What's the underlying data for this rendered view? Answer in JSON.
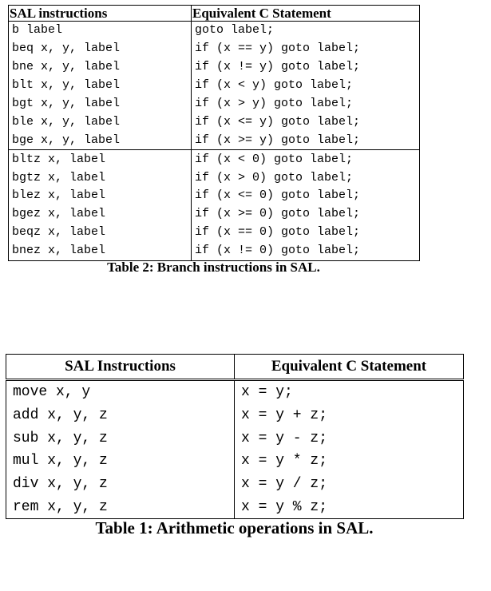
{
  "table2": {
    "headers": [
      "SAL instructions",
      "Equivalent C Statement"
    ],
    "rows": [
      [
        "b label",
        "goto label;"
      ],
      [
        "beq x, y, label",
        "if (x == y) goto label;"
      ],
      [
        "bne x, y, label",
        "if (x != y) goto label;"
      ],
      [
        "blt x, y, label",
        "if (x < y) goto label;"
      ],
      [
        "bgt x, y, label",
        "if (x > y) goto label;"
      ],
      [
        "ble x, y, label",
        "if (x <= y) goto label;"
      ],
      [
        "bge x, y, label",
        "if (x >= y) goto label;"
      ],
      [
        "bltz x, label",
        "if (x < 0) goto label;"
      ],
      [
        "bgtz x, label",
        "if (x > 0) goto label;"
      ],
      [
        "blez x, label",
        "if (x <= 0) goto label;"
      ],
      [
        "bgez x, label",
        "if (x >= 0) goto label;"
      ],
      [
        "beqz x, label",
        "if (x == 0) goto label;"
      ],
      [
        "bnez x, label",
        "if (x != 0) goto label;"
      ]
    ],
    "caption": "Table 2: Branch instructions in SAL."
  },
  "table1": {
    "headers": [
      "SAL Instructions",
      "Equivalent C Statement"
    ],
    "rows": [
      [
        "move x, y",
        "x = y;"
      ],
      [
        "add x, y, z",
        "x = y + z;"
      ],
      [
        "sub x, y, z",
        "x = y - z;"
      ],
      [
        "mul x, y, z",
        "x = y * z;"
      ],
      [
        "div x, y, z",
        "x = y / z;"
      ],
      [
        "rem x, y, z",
        "x = y % z;"
      ]
    ],
    "caption": "Table 1: Arithmetic operations in SAL."
  }
}
